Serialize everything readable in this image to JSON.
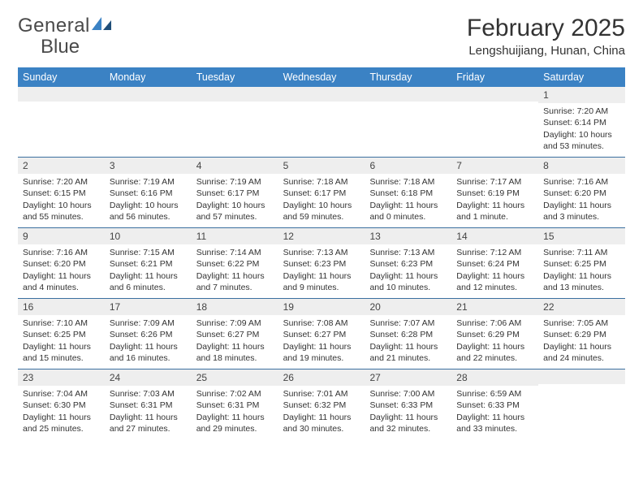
{
  "logo": {
    "text1": "General",
    "text2": "Blue"
  },
  "title": "February 2025",
  "location": "Lengshuijiang, Hunan, China",
  "colors": {
    "header_bg": "#3b82c4",
    "header_text": "#ffffff",
    "week_border": "#3b6fa0",
    "daynum_bg": "#eeeeee",
    "body_text": "#333333"
  },
  "weekdays": [
    "Sunday",
    "Monday",
    "Tuesday",
    "Wednesday",
    "Thursday",
    "Friday",
    "Saturday"
  ],
  "weeks": [
    [
      {
        "n": "",
        "sunrise": "",
        "sunset": "",
        "daylight": ""
      },
      {
        "n": "",
        "sunrise": "",
        "sunset": "",
        "daylight": ""
      },
      {
        "n": "",
        "sunrise": "",
        "sunset": "",
        "daylight": ""
      },
      {
        "n": "",
        "sunrise": "",
        "sunset": "",
        "daylight": ""
      },
      {
        "n": "",
        "sunrise": "",
        "sunset": "",
        "daylight": ""
      },
      {
        "n": "",
        "sunrise": "",
        "sunset": "",
        "daylight": ""
      },
      {
        "n": "1",
        "sunrise": "Sunrise: 7:20 AM",
        "sunset": "Sunset: 6:14 PM",
        "daylight": "Daylight: 10 hours and 53 minutes."
      }
    ],
    [
      {
        "n": "2",
        "sunrise": "Sunrise: 7:20 AM",
        "sunset": "Sunset: 6:15 PM",
        "daylight": "Daylight: 10 hours and 55 minutes."
      },
      {
        "n": "3",
        "sunrise": "Sunrise: 7:19 AM",
        "sunset": "Sunset: 6:16 PM",
        "daylight": "Daylight: 10 hours and 56 minutes."
      },
      {
        "n": "4",
        "sunrise": "Sunrise: 7:19 AM",
        "sunset": "Sunset: 6:17 PM",
        "daylight": "Daylight: 10 hours and 57 minutes."
      },
      {
        "n": "5",
        "sunrise": "Sunrise: 7:18 AM",
        "sunset": "Sunset: 6:17 PM",
        "daylight": "Daylight: 10 hours and 59 minutes."
      },
      {
        "n": "6",
        "sunrise": "Sunrise: 7:18 AM",
        "sunset": "Sunset: 6:18 PM",
        "daylight": "Daylight: 11 hours and 0 minutes."
      },
      {
        "n": "7",
        "sunrise": "Sunrise: 7:17 AM",
        "sunset": "Sunset: 6:19 PM",
        "daylight": "Daylight: 11 hours and 1 minute."
      },
      {
        "n": "8",
        "sunrise": "Sunrise: 7:16 AM",
        "sunset": "Sunset: 6:20 PM",
        "daylight": "Daylight: 11 hours and 3 minutes."
      }
    ],
    [
      {
        "n": "9",
        "sunrise": "Sunrise: 7:16 AM",
        "sunset": "Sunset: 6:20 PM",
        "daylight": "Daylight: 11 hours and 4 minutes."
      },
      {
        "n": "10",
        "sunrise": "Sunrise: 7:15 AM",
        "sunset": "Sunset: 6:21 PM",
        "daylight": "Daylight: 11 hours and 6 minutes."
      },
      {
        "n": "11",
        "sunrise": "Sunrise: 7:14 AM",
        "sunset": "Sunset: 6:22 PM",
        "daylight": "Daylight: 11 hours and 7 minutes."
      },
      {
        "n": "12",
        "sunrise": "Sunrise: 7:13 AM",
        "sunset": "Sunset: 6:23 PM",
        "daylight": "Daylight: 11 hours and 9 minutes."
      },
      {
        "n": "13",
        "sunrise": "Sunrise: 7:13 AM",
        "sunset": "Sunset: 6:23 PM",
        "daylight": "Daylight: 11 hours and 10 minutes."
      },
      {
        "n": "14",
        "sunrise": "Sunrise: 7:12 AM",
        "sunset": "Sunset: 6:24 PM",
        "daylight": "Daylight: 11 hours and 12 minutes."
      },
      {
        "n": "15",
        "sunrise": "Sunrise: 7:11 AM",
        "sunset": "Sunset: 6:25 PM",
        "daylight": "Daylight: 11 hours and 13 minutes."
      }
    ],
    [
      {
        "n": "16",
        "sunrise": "Sunrise: 7:10 AM",
        "sunset": "Sunset: 6:25 PM",
        "daylight": "Daylight: 11 hours and 15 minutes."
      },
      {
        "n": "17",
        "sunrise": "Sunrise: 7:09 AM",
        "sunset": "Sunset: 6:26 PM",
        "daylight": "Daylight: 11 hours and 16 minutes."
      },
      {
        "n": "18",
        "sunrise": "Sunrise: 7:09 AM",
        "sunset": "Sunset: 6:27 PM",
        "daylight": "Daylight: 11 hours and 18 minutes."
      },
      {
        "n": "19",
        "sunrise": "Sunrise: 7:08 AM",
        "sunset": "Sunset: 6:27 PM",
        "daylight": "Daylight: 11 hours and 19 minutes."
      },
      {
        "n": "20",
        "sunrise": "Sunrise: 7:07 AM",
        "sunset": "Sunset: 6:28 PM",
        "daylight": "Daylight: 11 hours and 21 minutes."
      },
      {
        "n": "21",
        "sunrise": "Sunrise: 7:06 AM",
        "sunset": "Sunset: 6:29 PM",
        "daylight": "Daylight: 11 hours and 22 minutes."
      },
      {
        "n": "22",
        "sunrise": "Sunrise: 7:05 AM",
        "sunset": "Sunset: 6:29 PM",
        "daylight": "Daylight: 11 hours and 24 minutes."
      }
    ],
    [
      {
        "n": "23",
        "sunrise": "Sunrise: 7:04 AM",
        "sunset": "Sunset: 6:30 PM",
        "daylight": "Daylight: 11 hours and 25 minutes."
      },
      {
        "n": "24",
        "sunrise": "Sunrise: 7:03 AM",
        "sunset": "Sunset: 6:31 PM",
        "daylight": "Daylight: 11 hours and 27 minutes."
      },
      {
        "n": "25",
        "sunrise": "Sunrise: 7:02 AM",
        "sunset": "Sunset: 6:31 PM",
        "daylight": "Daylight: 11 hours and 29 minutes."
      },
      {
        "n": "26",
        "sunrise": "Sunrise: 7:01 AM",
        "sunset": "Sunset: 6:32 PM",
        "daylight": "Daylight: 11 hours and 30 minutes."
      },
      {
        "n": "27",
        "sunrise": "Sunrise: 7:00 AM",
        "sunset": "Sunset: 6:33 PM",
        "daylight": "Daylight: 11 hours and 32 minutes."
      },
      {
        "n": "28",
        "sunrise": "Sunrise: 6:59 AM",
        "sunset": "Sunset: 6:33 PM",
        "daylight": "Daylight: 11 hours and 33 minutes."
      },
      {
        "n": "",
        "sunrise": "",
        "sunset": "",
        "daylight": ""
      }
    ]
  ]
}
